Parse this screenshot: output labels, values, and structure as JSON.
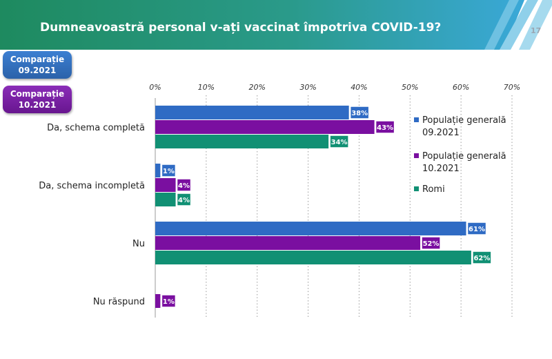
{
  "header": {
    "title": "Dumneavoastră personal v-ați vaccinat împotriva COVID-19?",
    "page_number": "17"
  },
  "badges": [
    {
      "line1": "Comparație",
      "line2": "09.2021",
      "color": "#2f6bbd"
    },
    {
      "line1": "Comparație",
      "line2": "10.2021",
      "color": "#7b1fa8"
    }
  ],
  "colors": {
    "banner_left": "#1e8a5f",
    "banner_right": "#3aa8d8"
  },
  "chart_data": {
    "type": "bar",
    "orientation": "horizontal",
    "categories": [
      "Da, schema completă",
      "Da, schema incompletă",
      "Nu",
      "Nu răspund"
    ],
    "series": [
      {
        "name": "Populație generală 09.2021",
        "values": [
          38,
          1,
          61,
          null
        ],
        "labels": [
          "38%",
          "1%",
          "61%",
          ""
        ],
        "color": "#2f6bc4"
      },
      {
        "name": "Populație generală 10.2021",
        "values": [
          43,
          4,
          52,
          1
        ],
        "labels": [
          "43%",
          "4%",
          "52%",
          "1%"
        ],
        "color": "#7a0fa0"
      },
      {
        "name": "Romi",
        "values": [
          34,
          4,
          62,
          null
        ],
        "labels": [
          "34%",
          "4%",
          "62%",
          ""
        ],
        "color": "#119074"
      }
    ],
    "xlim": [
      0,
      70
    ],
    "ticks": [
      "0%",
      "10%",
      "20%",
      "30%",
      "40%",
      "50%",
      "60%",
      "70%"
    ],
    "tick_values": [
      0,
      10,
      20,
      30,
      40,
      50,
      60,
      70
    ],
    "grid": true,
    "legend_position": "right"
  }
}
